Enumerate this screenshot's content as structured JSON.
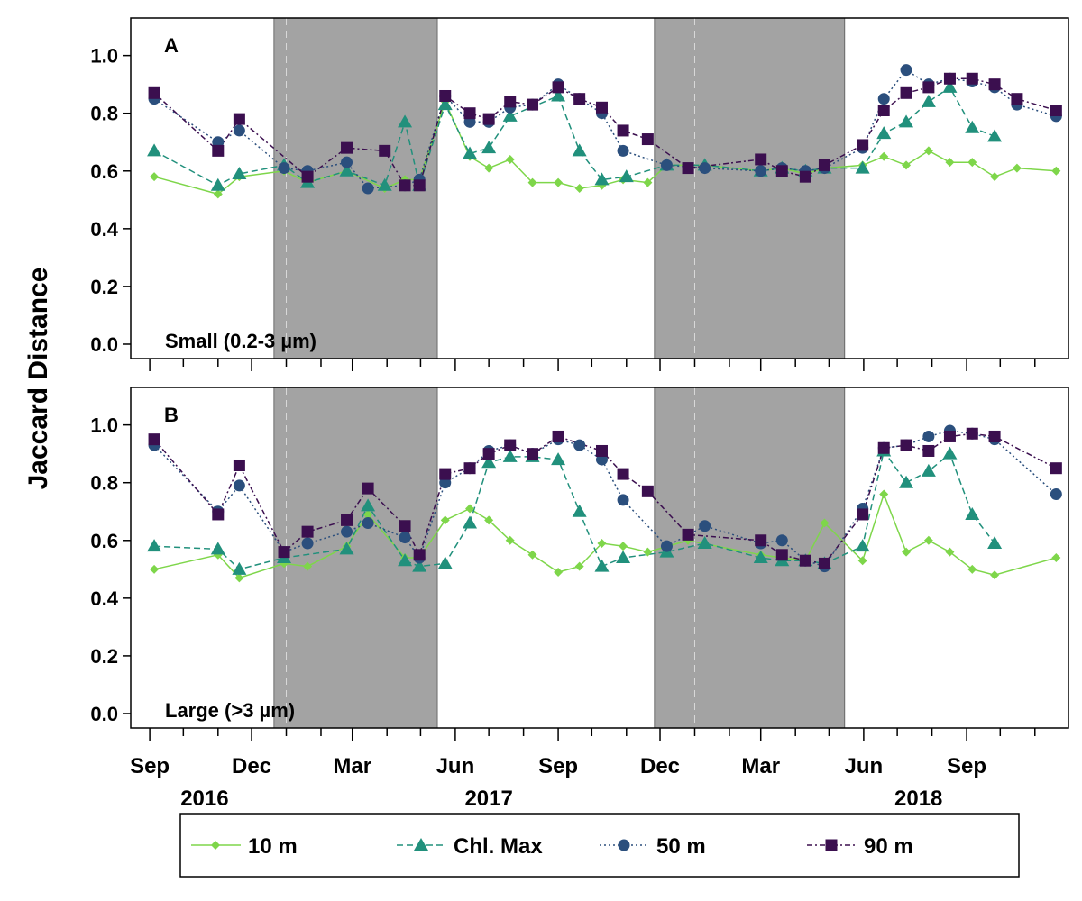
{
  "figure": {
    "ylabel": "Jaccard Distance",
    "x_month_labels": [
      "Sep",
      "Dec",
      "Mar",
      "Jun",
      "Sep",
      "Dec",
      "Mar",
      "Jun",
      "Sep"
    ],
    "x_year_labels": [
      "2016",
      "2017",
      "2018"
    ]
  },
  "colors": {
    "10 m": "#7ed64a",
    "Chl. Max": "#21907c",
    "50 m": "#2b4f7d",
    "90 m": "#3b0f4f",
    "shade": "#a3a3a3"
  },
  "legend": {
    "items": [
      {
        "label": "10 m",
        "marker": "diamond",
        "dash": "solid"
      },
      {
        "label": "Chl. Max",
        "marker": "triangle",
        "dash": "dashed"
      },
      {
        "label": "50 m",
        "marker": "circle",
        "dash": "dotted"
      },
      {
        "label": "90 m",
        "marker": "square",
        "dash": "dashdot"
      }
    ]
  },
  "chart_data": [
    {
      "type": "line",
      "panel_letter": "A",
      "size_label": "Small (0.2-3 µm)",
      "xlabel": "",
      "ylabel": "Jaccard Distance",
      "ylim": [
        -0.05,
        1.13
      ],
      "yticks": [
        "0.0",
        "0.2",
        "0.4",
        "0.6",
        "0.8",
        "1.0"
      ],
      "x_axis": "date",
      "xlim": [
        "2016-08-15",
        "2018-12-01"
      ],
      "shaded_periods": [
        [
          "2016-12-21",
          "2017-05-16"
        ],
        [
          "2017-11-26",
          "2018-05-15"
        ]
      ],
      "legend": "bottom",
      "series": [
        {
          "name": "10 m",
          "marker": "diamond",
          "x": [
            "2016-09-05",
            "2016-11-01",
            "2016-11-20",
            "2016-12-30",
            "2017-01-20",
            "2017-02-24",
            "2017-03-30",
            "2017-04-17",
            "2017-04-30",
            "2017-05-23",
            "2017-06-14",
            "2017-07-01",
            "2017-07-20",
            "2017-08-09",
            "2017-09-01",
            "2017-09-20",
            "2017-10-10",
            "2017-10-29",
            "2017-11-20",
            "2017-12-07",
            "2018-01-10",
            "2018-03-01",
            "2018-03-20",
            "2018-04-10",
            "2018-04-27",
            "2018-05-31",
            "2018-06-19",
            "2018-07-09",
            "2018-07-29",
            "2018-08-17",
            "2018-09-06",
            "2018-09-26",
            "2018-10-16",
            "2018-11-20"
          ],
          "values": [
            0.58,
            0.52,
            0.58,
            0.6,
            0.56,
            0.6,
            0.54,
            0.57,
            0.57,
            0.84,
            0.65,
            0.61,
            0.64,
            0.56,
            0.56,
            0.54,
            0.55,
            0.57,
            0.56,
            0.62,
            0.62,
            0.6,
            0.61,
            0.59,
            0.61,
            0.62,
            0.65,
            0.62,
            0.67,
            0.63,
            0.63,
            0.58,
            0.61,
            0.6
          ]
        },
        {
          "name": "Chl. Max",
          "marker": "triangle",
          "x": [
            "2016-09-05",
            "2016-11-01",
            "2016-11-20",
            "2016-12-30",
            "2017-01-20",
            "2017-02-24",
            "2017-03-30",
            "2017-04-17",
            "2017-04-30",
            "2017-05-23",
            "2017-06-14",
            "2017-07-01",
            "2017-07-20",
            "2017-09-01",
            "2017-09-20",
            "2017-10-10",
            "2017-11-01",
            "2017-12-07",
            "2018-01-10",
            "2018-03-01",
            "2018-03-20",
            "2018-04-10",
            "2018-04-27",
            "2018-05-31",
            "2018-06-19",
            "2018-07-09",
            "2018-07-29",
            "2018-08-17",
            "2018-09-06",
            "2018-09-26"
          ],
          "values": [
            0.67,
            0.55,
            0.59,
            0.62,
            0.56,
            0.6,
            0.55,
            0.77,
            0.55,
            0.83,
            0.66,
            0.68,
            0.79,
            0.86,
            0.67,
            0.57,
            0.58,
            0.62,
            0.62,
            0.6,
            0.61,
            0.6,
            0.61,
            0.61,
            0.73,
            0.77,
            0.84,
            0.89,
            0.75,
            0.72
          ]
        },
        {
          "name": "50 m",
          "marker": "circle",
          "x": [
            "2016-09-05",
            "2016-11-01",
            "2016-11-20",
            "2016-12-30",
            "2017-01-20",
            "2017-02-24",
            "2017-03-15",
            "2017-04-17",
            "2017-04-30",
            "2017-05-23",
            "2017-06-14",
            "2017-07-01",
            "2017-07-20",
            "2017-08-09",
            "2017-09-01",
            "2017-09-20",
            "2017-10-10",
            "2017-10-29",
            "2017-12-07",
            "2018-01-10",
            "2018-03-01",
            "2018-03-20",
            "2018-04-10",
            "2018-04-27",
            "2018-05-31",
            "2018-06-19",
            "2018-07-09",
            "2018-07-29",
            "2018-08-17",
            "2018-09-06",
            "2018-09-26",
            "2018-10-16",
            "2018-11-20"
          ],
          "values": [
            0.85,
            0.7,
            0.74,
            0.61,
            0.6,
            0.63,
            0.54,
            0.55,
            0.57,
            0.86,
            0.77,
            0.77,
            0.82,
            0.83,
            0.9,
            0.85,
            0.8,
            0.67,
            0.62,
            0.61,
            0.6,
            0.61,
            0.6,
            0.61,
            0.68,
            0.85,
            0.95,
            0.9,
            0.92,
            0.91,
            0.89,
            0.83,
            0.79
          ]
        },
        {
          "name": "90 m",
          "marker": "square",
          "x": [
            "2016-09-05",
            "2016-11-01",
            "2016-11-20",
            "2017-01-20",
            "2017-02-24",
            "2017-03-30",
            "2017-04-17",
            "2017-04-30",
            "2017-05-23",
            "2017-06-14",
            "2017-07-01",
            "2017-07-20",
            "2017-08-09",
            "2017-09-01",
            "2017-09-20",
            "2017-10-10",
            "2017-10-29",
            "2017-11-20",
            "2017-12-26",
            "2018-03-01",
            "2018-03-20",
            "2018-04-10",
            "2018-04-27",
            "2018-05-31",
            "2018-06-19",
            "2018-07-09",
            "2018-07-29",
            "2018-08-17",
            "2018-09-06",
            "2018-09-26",
            "2018-10-16",
            "2018-11-20"
          ],
          "values": [
            0.87,
            0.67,
            0.78,
            0.58,
            0.68,
            0.67,
            0.55,
            0.55,
            0.86,
            0.8,
            0.78,
            0.84,
            0.83,
            0.89,
            0.85,
            0.82,
            0.74,
            0.71,
            0.61,
            0.64,
            0.6,
            0.58,
            0.62,
            0.69,
            0.81,
            0.87,
            0.89,
            0.92,
            0.92,
            0.9,
            0.85,
            0.81
          ]
        }
      ]
    },
    {
      "type": "line",
      "panel_letter": "B",
      "size_label": "Large (>3 µm)",
      "xlabel": "",
      "ylabel": "Jaccard Distance",
      "ylim": [
        -0.05,
        1.13
      ],
      "yticks": [
        "0.0",
        "0.2",
        "0.4",
        "0.6",
        "0.8",
        "1.0"
      ],
      "x_axis": "date",
      "xlim": [
        "2016-08-15",
        "2018-12-01"
      ],
      "shaded_periods": [
        [
          "2016-12-21",
          "2017-05-16"
        ],
        [
          "2017-11-26",
          "2018-05-15"
        ]
      ],
      "legend": "bottom",
      "series": [
        {
          "name": "10 m",
          "marker": "diamond",
          "x": [
            "2016-09-05",
            "2016-11-01",
            "2016-11-20",
            "2016-12-30",
            "2017-01-20",
            "2017-02-24",
            "2017-03-15",
            "2017-04-17",
            "2017-04-30",
            "2017-05-23",
            "2017-06-14",
            "2017-07-01",
            "2017-07-20",
            "2017-08-09",
            "2017-09-01",
            "2017-09-20",
            "2017-10-10",
            "2017-10-29",
            "2017-11-20",
            "2017-12-26",
            "2018-03-01",
            "2018-03-20",
            "2018-04-10",
            "2018-04-27",
            "2018-05-31",
            "2018-06-19",
            "2018-07-09",
            "2018-07-29",
            "2018-08-17",
            "2018-09-06",
            "2018-09-26",
            "2018-11-20"
          ],
          "values": [
            0.5,
            0.55,
            0.47,
            0.52,
            0.51,
            0.58,
            0.69,
            0.54,
            0.54,
            0.67,
            0.71,
            0.67,
            0.6,
            0.55,
            0.49,
            0.51,
            0.59,
            0.58,
            0.56,
            0.6,
            0.55,
            0.54,
            0.53,
            0.66,
            0.53,
            0.76,
            0.56,
            0.6,
            0.56,
            0.5,
            0.48,
            0.54
          ]
        },
        {
          "name": "Chl. Max",
          "marker": "triangle",
          "x": [
            "2016-09-05",
            "2016-11-01",
            "2016-11-20",
            "2016-12-30",
            "2017-02-24",
            "2017-03-15",
            "2017-04-17",
            "2017-04-30",
            "2017-05-23",
            "2017-06-14",
            "2017-07-01",
            "2017-07-20",
            "2017-08-09",
            "2017-09-01",
            "2017-09-20",
            "2017-10-10",
            "2017-10-29",
            "2017-12-07",
            "2018-01-10",
            "2018-03-01",
            "2018-03-20",
            "2018-04-10",
            "2018-04-27",
            "2018-05-31",
            "2018-06-19",
            "2018-07-09",
            "2018-07-29",
            "2018-08-17",
            "2018-09-06",
            "2018-09-26"
          ],
          "values": [
            0.58,
            0.57,
            0.5,
            0.54,
            0.57,
            0.72,
            0.53,
            0.51,
            0.52,
            0.66,
            0.87,
            0.89,
            0.89,
            0.88,
            0.7,
            0.51,
            0.54,
            0.56,
            0.59,
            0.54,
            0.53,
            0.53,
            0.52,
            0.58,
            0.91,
            0.8,
            0.84,
            0.9,
            0.69,
            0.59
          ]
        },
        {
          "name": "50 m",
          "marker": "circle",
          "x": [
            "2016-09-05",
            "2016-11-01",
            "2016-11-20",
            "2016-12-30",
            "2017-01-20",
            "2017-02-24",
            "2017-03-15",
            "2017-04-17",
            "2017-04-30",
            "2017-05-23",
            "2017-06-14",
            "2017-07-01",
            "2017-07-20",
            "2017-08-09",
            "2017-09-01",
            "2017-09-20",
            "2017-10-10",
            "2017-10-29",
            "2017-12-07",
            "2018-01-10",
            "2018-03-01",
            "2018-03-20",
            "2018-04-10",
            "2018-04-27",
            "2018-05-31",
            "2018-06-19",
            "2018-07-09",
            "2018-07-29",
            "2018-08-17",
            "2018-09-06",
            "2018-09-26",
            "2018-11-20"
          ],
          "values": [
            0.93,
            0.7,
            0.79,
            0.56,
            0.59,
            0.63,
            0.66,
            0.61,
            0.54,
            0.8,
            0.85,
            0.91,
            0.93,
            0.9,
            0.95,
            0.93,
            0.88,
            0.74,
            0.58,
            0.65,
            0.59,
            0.6,
            0.53,
            0.51,
            0.71,
            0.92,
            0.93,
            0.96,
            0.98,
            0.97,
            0.95,
            0.76
          ]
        },
        {
          "name": "90 m",
          "marker": "square",
          "x": [
            "2016-09-05",
            "2016-11-01",
            "2016-11-20",
            "2016-12-30",
            "2017-01-20",
            "2017-02-24",
            "2017-03-15",
            "2017-04-17",
            "2017-04-30",
            "2017-05-23",
            "2017-06-14",
            "2017-07-01",
            "2017-07-20",
            "2017-08-09",
            "2017-09-01",
            "2017-10-10",
            "2017-10-29",
            "2017-11-20",
            "2017-12-26",
            "2018-03-01",
            "2018-03-20",
            "2018-04-10",
            "2018-04-27",
            "2018-05-31",
            "2018-06-19",
            "2018-07-09",
            "2018-07-29",
            "2018-08-17",
            "2018-09-06",
            "2018-09-26",
            "2018-11-20"
          ],
          "values": [
            0.95,
            0.69,
            0.86,
            0.56,
            0.63,
            0.67,
            0.78,
            0.65,
            0.55,
            0.83,
            0.85,
            0.9,
            0.93,
            0.9,
            0.96,
            0.91,
            0.83,
            0.77,
            0.62,
            0.6,
            0.55,
            0.53,
            0.52,
            0.69,
            0.92,
            0.93,
            0.91,
            0.96,
            0.97,
            0.96,
            0.85
          ]
        }
      ]
    }
  ]
}
